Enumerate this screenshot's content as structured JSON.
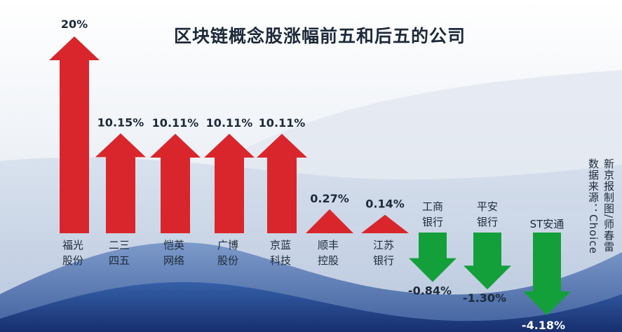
{
  "title": "区块链概念股涨幅前五和后五的公司",
  "source_lines": [
    "新京报制图/师春雷",
    "数据来源：Choice"
  ],
  "colors": {
    "up": "#d9262c",
    "down": "#13a03b",
    "text": "#1d2a3a"
  },
  "chart_data": {
    "type": "bar",
    "title": "区块链概念股涨幅前五和后五的公司",
    "unit": "%",
    "categories": [
      [
        "福光",
        "股份"
      ],
      [
        "二三",
        "四五"
      ],
      [
        "恺英",
        "网络"
      ],
      [
        "广博",
        "股份"
      ],
      [
        "京蓝",
        "科技"
      ],
      [
        "顺丰",
        "控股"
      ],
      [
        "江苏",
        "银行"
      ],
      [
        "工商",
        "银行"
      ],
      [
        "平安",
        "银行"
      ],
      [
        "ST安通"
      ]
    ],
    "values": [
      20,
      10.15,
      10.11,
      10.11,
      10.11,
      0.27,
      0.14,
      -0.84,
      -1.3,
      -4.18
    ],
    "labels": [
      "20%",
      "10.15%",
      "10.11%",
      "10.11%",
      "10.11%",
      "0.27%",
      "0.14%",
      "-0.84%",
      "-1.30%",
      "-4.18%"
    ],
    "xlabel": "",
    "ylabel": ""
  }
}
